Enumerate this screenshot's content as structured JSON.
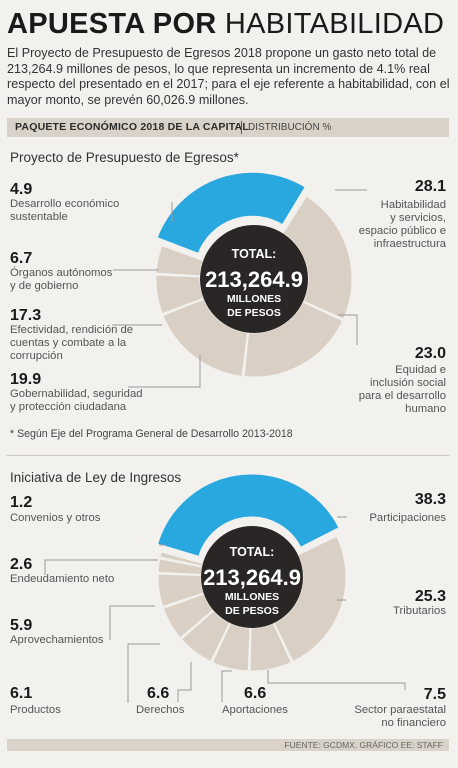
{
  "headline": {
    "bold": "APUESTA POR",
    "light": "HABITABILIDAD"
  },
  "intro": "El Proyecto de Presupuesto de Egresos 2018 propone un gasto neto total de 213,264.9 millones de pesos, lo que representa un incremento de 4.1% real respecto del presentado en el 2017; para el eje referente a habitabilidad, con el mayor monto, se prevén 60,026.9 millones.",
  "band": {
    "title": "PAQUETE ECONÓMICO 2018 DE LA CAPITAL",
    "sub": "DISTRIBUCIÓN %"
  },
  "colors": {
    "highlight": "#29a8e0",
    "segment": "#d9cfc4",
    "center": "#2b2626",
    "leader": "#999999"
  },
  "chart_data": [
    {
      "type": "pie",
      "title": "Proyecto de Presupuesto de Egresos*",
      "center": {
        "line1": "TOTAL:",
        "amount": "213,264.9",
        "line2": "MILLONES",
        "line3": "DE PESOS"
      },
      "slices": [
        {
          "value": 28.1,
          "value_label": "28.1",
          "label": "Habitabilidad y servicios, espacio público e infraestructura",
          "lines": [
            "Habitabilidad",
            "y servicios,",
            "espacio público e",
            "infraestructura"
          ],
          "highlight": true
        },
        {
          "value": 23.0,
          "value_label": "23.0",
          "label": "Equidad e inclusión social para el desarrollo humano",
          "lines": [
            "Equidad e",
            "inclusión social",
            "para el desarrollo",
            "humano"
          ]
        },
        {
          "value": 19.9,
          "value_label": "19.9",
          "label": "Gobernabilidad, seguridad y protección ciudadana",
          "lines": [
            "Gobernabilidad, seguridad",
            "y protección ciudadana"
          ]
        },
        {
          "value": 17.3,
          "value_label": "17.3",
          "label": "Efectividad, rendición de cuentas y combate a la corrupción",
          "lines": [
            "Efectividad, rendición de",
            "cuentas y combate a la",
            "corrupción"
          ]
        },
        {
          "value": 6.7,
          "value_label": "6.7",
          "label": "Órganos autónomos y de gobierno",
          "lines": [
            "Órganos autónomos",
            "y de gobierno"
          ]
        },
        {
          "value": 4.9,
          "value_label": "4.9",
          "label": "Desarrollo económico sustentable",
          "lines": [
            "Desarrollo económico",
            "sustentable"
          ]
        }
      ],
      "footnote": "* Según Eje del Programa General de Desarrollo 2013-2018"
    },
    {
      "type": "pie",
      "title": "Iniciativa de Ley de Ingresos",
      "center": {
        "line1": "TOTAL:",
        "amount": "213,264.9",
        "line2": "MILLONES",
        "line3": "DE PESOS"
      },
      "slices": [
        {
          "value": 38.3,
          "value_label": "38.3",
          "label": "Participaciones",
          "lines": [
            "Participaciones"
          ],
          "highlight": true
        },
        {
          "value": 25.3,
          "value_label": "25.3",
          "label": "Tributarios",
          "lines": [
            "Tributarios"
          ]
        },
        {
          "value": 7.5,
          "value_label": "7.5",
          "label": "Sector paraestatal no financiero",
          "lines": [
            "Sector paraestatal",
            "no financiero"
          ]
        },
        {
          "value": 6.6,
          "value_label": "6.6",
          "label": "Aportaciones",
          "lines": [
            "Aportaciones"
          ]
        },
        {
          "value": 6.6,
          "value_label": "6.6",
          "label": "Derechos",
          "lines": [
            "Derechos"
          ]
        },
        {
          "value": 6.1,
          "value_label": "6.1",
          "label": "Productos",
          "lines": [
            "Productos"
          ]
        },
        {
          "value": 5.9,
          "value_label": "5.9",
          "label": "Aprovechamientos",
          "lines": [
            "Aprovechamientos"
          ]
        },
        {
          "value": 2.6,
          "value_label": "2.6",
          "label": "Endeudamiento neto",
          "lines": [
            "Endeudamiento neto"
          ]
        },
        {
          "value": 1.2,
          "value_label": "1.2",
          "label": "Convenios y otros",
          "lines": [
            "Convenios y otros"
          ]
        }
      ]
    }
  ],
  "source": "FUENTE: GCDMX. GRÁFICO EE: STAFF"
}
